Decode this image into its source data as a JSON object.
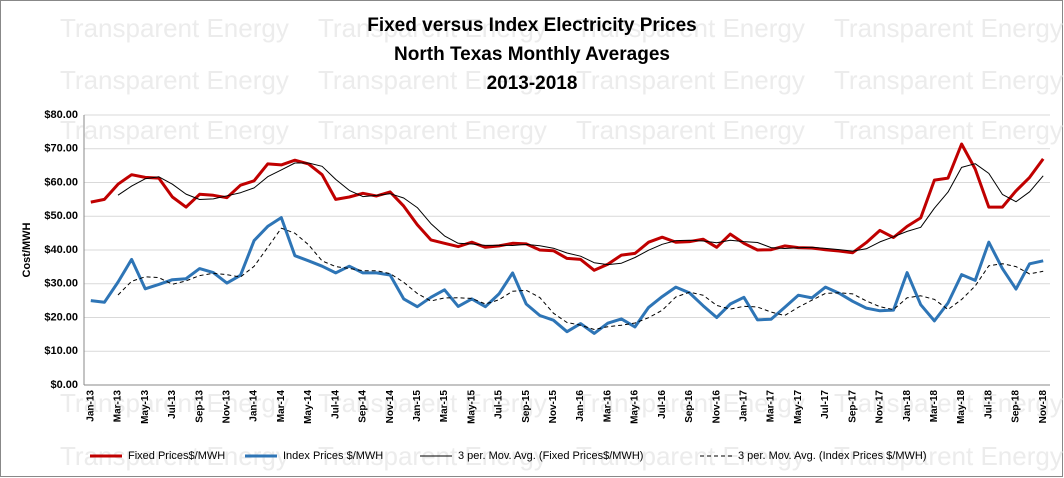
{
  "chart_data": {
    "type": "line",
    "title": [
      "Fixed versus Index Electricity Prices",
      "North Texas Monthly Averages",
      "2013-2018"
    ],
    "watermark": "Transparent Energy",
    "y_label": "Cost/MWH",
    "categories": [
      "Jan-13",
      null,
      "Mar-13",
      null,
      "May-13",
      null,
      "Jul-13",
      null,
      "Sep-13",
      null,
      "Nov-13",
      null,
      "Jan-14",
      null,
      "Mar-14",
      null,
      "May-14",
      null,
      "Jul-14",
      null,
      "Sep-14",
      null,
      "Nov-14",
      null,
      "Jan-15",
      null,
      "Mar-15",
      null,
      "May-15",
      null,
      "Jul-15",
      null,
      "Sep-15",
      null,
      "Nov-15",
      null,
      "Jan-16",
      null,
      "Mar-16",
      null,
      "May-16",
      null,
      "Jul-16",
      null,
      "Sep-16",
      null,
      "Nov-16",
      null,
      "Jan-17",
      null,
      "Mar-17",
      null,
      "May-17",
      null,
      "Jul-17",
      null,
      "Sep-17",
      null,
      "Nov-17",
      null,
      "Jan-18",
      null,
      "Mar-18",
      null,
      "May-18",
      null,
      "Jul-18",
      null,
      "Sep-18",
      null,
      "Nov-18"
    ],
    "series": [
      {
        "name": "Fixed Prices$/MWH",
        "color": "#c00000",
        "weight": "thick",
        "dash": "solid",
        "values": [
          54.2,
          55,
          59.5,
          62.3,
          61.5,
          61.3,
          55.7,
          52.7,
          56.5,
          56.2,
          55.5,
          59.2,
          60.5,
          65.5,
          65.2,
          66.6,
          65.5,
          62.3,
          55,
          55.7,
          56.8,
          56,
          57.2,
          53,
          47.5,
          43,
          42,
          41,
          42.3,
          40.8,
          41.2,
          42,
          41.8,
          40,
          39.8,
          37.5,
          37.2,
          34,
          35.8,
          38.5,
          39,
          42.3,
          43.8,
          42.3,
          42.5,
          43.2,
          40.8,
          44.7,
          42,
          40,
          40.1,
          41.2,
          40.7,
          40.6,
          40.1,
          39.7,
          39.2,
          42.2,
          45.8,
          43.7,
          47,
          49.5,
          60.7,
          61.3,
          71.4,
          64,
          52.7,
          52.7,
          57.5,
          61.5,
          67
        ]
      },
      {
        "name": "Index Prices $/MWH",
        "color": "#2e75b6",
        "weight": "thick",
        "dash": "solid",
        "values": [
          25,
          24.5,
          30.5,
          37.2,
          28.5,
          29.8,
          31.2,
          31.5,
          34.5,
          33.3,
          30.2,
          32.5,
          42.8,
          47,
          49.6,
          38.3,
          36.8,
          35.2,
          33.2,
          35.2,
          33.2,
          33.2,
          32.6,
          25.5,
          23.2,
          26,
          28.2,
          23.3,
          25.5,
          23.2,
          27,
          33.2,
          24,
          20.6,
          19.2,
          15.8,
          18.2,
          15.3,
          18.3,
          19.6,
          17.2,
          23,
          26.2,
          29,
          27.3,
          23.5,
          20,
          24,
          26,
          19.3,
          19.5,
          23,
          26.6,
          25.8,
          29,
          27.2,
          24.8,
          22.8,
          22,
          22.2,
          33.3,
          23.8,
          19,
          24.3,
          32.7,
          31,
          42.3,
          34.5,
          28.4,
          35.9,
          36.8
        ]
      },
      {
        "name": "3 per. Mov. Avg. (Fixed Prices$/MWH)",
        "color": "#000000",
        "weight": "thin",
        "dash": "solid",
        "values": [
          null,
          null,
          56.23,
          58.93,
          61.1,
          61.7,
          59.5,
          56.57,
          54.97,
          55.13,
          56.07,
          56.97,
          58.4,
          61.73,
          63.73,
          65.77,
          65.77,
          64.8,
          60.93,
          57.67,
          55.83,
          56.17,
          56.67,
          55.4,
          52.57,
          47.83,
          44.17,
          42,
          41.77,
          41.37,
          41.43,
          41.33,
          41.67,
          41.27,
          40.53,
          39.1,
          38.17,
          36.23,
          35.67,
          36.1,
          37.77,
          39.93,
          41.7,
          42.8,
          42.87,
          42.67,
          42.17,
          42.9,
          42.5,
          42.23,
          40.7,
          40.43,
          40.67,
          40.83,
          40.47,
          40.13,
          39.67,
          40.37,
          42.4,
          43.9,
          45.5,
          46.73,
          52.4,
          57.17,
          64.47,
          65.57,
          62.7,
          56.47,
          54.3,
          57.23,
          62
        ]
      },
      {
        "name": "3 per. Mov. Avg. (Index Prices $/MWH)",
        "color": "#000000",
        "weight": "thin",
        "dash": "dashed",
        "values": [
          null,
          null,
          26.67,
          30.73,
          32.07,
          31.83,
          29.83,
          30.83,
          32.4,
          33.1,
          32.67,
          32,
          35.17,
          40.77,
          46.47,
          44.97,
          41.57,
          36.77,
          35.07,
          34.53,
          33.87,
          33.87,
          33,
          30.43,
          27.1,
          24.9,
          25.8,
          25.83,
          25.67,
          24,
          25.23,
          27.8,
          28.07,
          25.93,
          21.27,
          18.53,
          17.73,
          16.43,
          17.27,
          17.73,
          18.37,
          19.93,
          22.13,
          26.07,
          27.5,
          26.6,
          23.6,
          22.5,
          23.33,
          23.1,
          21.6,
          20.6,
          23.03,
          25.13,
          27.13,
          27.33,
          27,
          24.93,
          23.2,
          22.33,
          25.83,
          26.43,
          25.37,
          22.37,
          25.33,
          29.33,
          35.33,
          35.93,
          35.07,
          32.93,
          33.7
        ]
      }
    ],
    "ylim": [
      0,
      80
    ],
    "yticks": [
      {
        "value": 0,
        "label": "$0.00"
      },
      {
        "value": 10,
        "label": "$10.00"
      },
      {
        "value": 20,
        "label": "$20.00"
      },
      {
        "value": 30,
        "label": "$30.00"
      },
      {
        "value": 40,
        "label": "$40.00"
      },
      {
        "value": 50,
        "label": "$50.00"
      },
      {
        "value": 60,
        "label": "$60.00"
      },
      {
        "value": 70,
        "label": "$70.00"
      },
      {
        "value": 80,
        "label": "$80.00"
      }
    ],
    "grid": true,
    "legend": "bottom"
  }
}
